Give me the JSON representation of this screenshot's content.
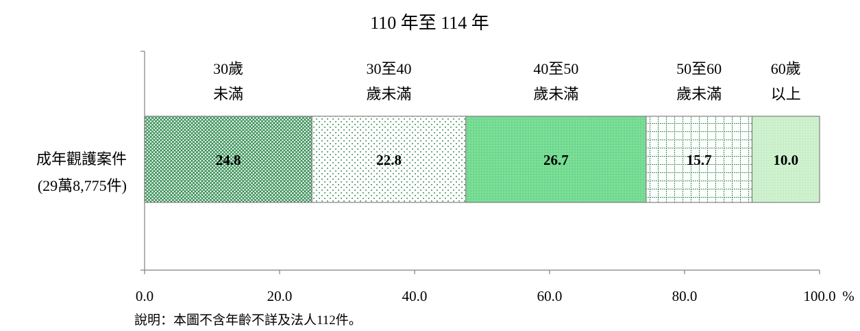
{
  "chart_data": {
    "type": "bar",
    "orientation": "horizontal",
    "stacked": true,
    "title": "110 年至 114 年",
    "categories": [
      {
        "line1": "成年觀護案件",
        "line2": "(29萬8,775件)"
      }
    ],
    "series": [
      {
        "name_lines": [
          "30歲",
          "未滿"
        ],
        "value": 24.8,
        "label": "24.8",
        "color": "#2e8b4e",
        "pattern": "crosshatch"
      },
      {
        "name_lines": [
          "30至40",
          "歲未滿"
        ],
        "value": 22.8,
        "label": "22.8",
        "color": "#3b8f5a",
        "pattern": "sparse-dots"
      },
      {
        "name_lines": [
          "40至50",
          "歲未滿"
        ],
        "value": 26.7,
        "label": "26.7",
        "color": "#6fd98e",
        "pattern": "solid-dots"
      },
      {
        "name_lines": [
          "50至60",
          "歲未滿"
        ],
        "value": 15.7,
        "label": "15.7",
        "color": "#3b8f5a",
        "pattern": "grid"
      },
      {
        "name_lines": [
          "60歲",
          "以上"
        ],
        "value": 10.0,
        "label": "10.0",
        "color": "#c9efc9",
        "pattern": "light-dots"
      }
    ],
    "xlim": [
      0,
      100
    ],
    "x_ticks": [
      "0.0",
      "20.0",
      "40.0",
      "60.0",
      "80.0",
      "100.0"
    ],
    "x_unit": "%",
    "grid": false,
    "legend": "top"
  },
  "note": "說明：本圖不含年齡不詳及法人112件。"
}
